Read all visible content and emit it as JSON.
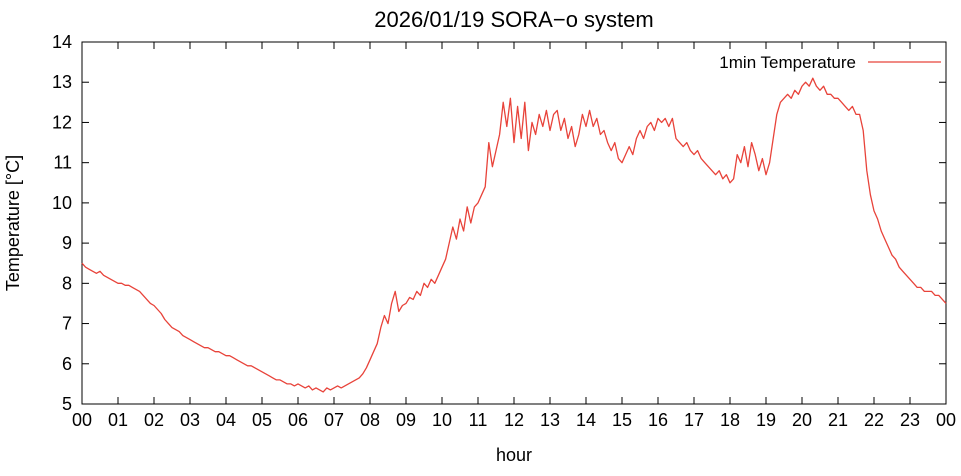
{
  "accent_color": "#e8433a",
  "chart_data": {
    "type": "line",
    "title": "2026/01/19 SORA−o system",
    "xlabel": "hour",
    "ylabel": "Temperature [°C]",
    "xlim": [
      0,
      24
    ],
    "ylim": [
      5,
      14
    ],
    "grid": false,
    "legend_position": "top-right",
    "legend": [
      "1min Temperature"
    ],
    "line_color": "#e8433a",
    "x_tick_labels": [
      "00",
      "01",
      "02",
      "03",
      "04",
      "05",
      "06",
      "07",
      "08",
      "09",
      "10",
      "11",
      "12",
      "13",
      "14",
      "15",
      "16",
      "17",
      "18",
      "19",
      "20",
      "21",
      "22",
      "23",
      "00"
    ],
    "y_ticks": [
      5,
      6,
      7,
      8,
      9,
      10,
      11,
      12,
      13,
      14
    ],
    "series": [
      {
        "name": "1min Temperature",
        "x_start": 0,
        "x_step": 0.1,
        "values": [
          8.5,
          8.4,
          8.35,
          8.3,
          8.25,
          8.3,
          8.2,
          8.15,
          8.1,
          8.05,
          8.0,
          8.0,
          7.95,
          7.95,
          7.9,
          7.85,
          7.8,
          7.7,
          7.6,
          7.5,
          7.45,
          7.35,
          7.25,
          7.1,
          7.0,
          6.9,
          6.85,
          6.8,
          6.7,
          6.65,
          6.6,
          6.55,
          6.5,
          6.45,
          6.4,
          6.4,
          6.35,
          6.3,
          6.3,
          6.25,
          6.2,
          6.2,
          6.15,
          6.1,
          6.05,
          6.0,
          5.95,
          5.95,
          5.9,
          5.85,
          5.8,
          5.75,
          5.7,
          5.65,
          5.6,
          5.6,
          5.55,
          5.5,
          5.5,
          5.45,
          5.5,
          5.45,
          5.4,
          5.45,
          5.35,
          5.4,
          5.35,
          5.3,
          5.4,
          5.35,
          5.4,
          5.45,
          5.4,
          5.45,
          5.5,
          5.55,
          5.6,
          5.65,
          5.75,
          5.9,
          6.1,
          6.3,
          6.5,
          6.9,
          7.2,
          7.0,
          7.5,
          7.8,
          7.3,
          7.45,
          7.5,
          7.65,
          7.6,
          7.8,
          7.7,
          8.0,
          7.9,
          8.1,
          8.0,
          8.2,
          8.4,
          8.6,
          9.0,
          9.4,
          9.1,
          9.6,
          9.3,
          9.9,
          9.5,
          9.9,
          10.0,
          10.2,
          10.4,
          11.5,
          10.9,
          11.3,
          11.7,
          12.5,
          11.9,
          12.6,
          11.5,
          12.4,
          11.6,
          12.5,
          11.3,
          12.0,
          11.7,
          12.2,
          11.9,
          12.3,
          11.8,
          12.2,
          12.3,
          11.8,
          12.1,
          11.6,
          11.9,
          11.4,
          11.7,
          12.2,
          11.9,
          12.3,
          11.9,
          12.1,
          11.7,
          11.8,
          11.5,
          11.3,
          11.5,
          11.1,
          11.0,
          11.2,
          11.4,
          11.2,
          11.6,
          11.8,
          11.6,
          11.9,
          12.0,
          11.8,
          12.1,
          12.0,
          12.1,
          11.9,
          12.1,
          11.6,
          11.5,
          11.4,
          11.5,
          11.3,
          11.2,
          11.3,
          11.1,
          11.0,
          10.9,
          10.8,
          10.7,
          10.8,
          10.6,
          10.7,
          10.5,
          10.6,
          11.2,
          11.0,
          11.4,
          10.9,
          11.5,
          11.2,
          10.8,
          11.1,
          10.7,
          11.0,
          11.6,
          12.2,
          12.5,
          12.6,
          12.7,
          12.6,
          12.8,
          12.7,
          12.9,
          13.0,
          12.9,
          13.1,
          12.9,
          12.8,
          12.9,
          12.7,
          12.7,
          12.6,
          12.6,
          12.5,
          12.4,
          12.3,
          12.4,
          12.2,
          12.2,
          11.8,
          10.8,
          10.2,
          9.8,
          9.6,
          9.3,
          9.1,
          8.9,
          8.7,
          8.6,
          8.4,
          8.3,
          8.2,
          8.1,
          8.0,
          7.9,
          7.9,
          7.8,
          7.8,
          7.8,
          7.7,
          7.7,
          7.6,
          7.5
        ]
      }
    ]
  }
}
